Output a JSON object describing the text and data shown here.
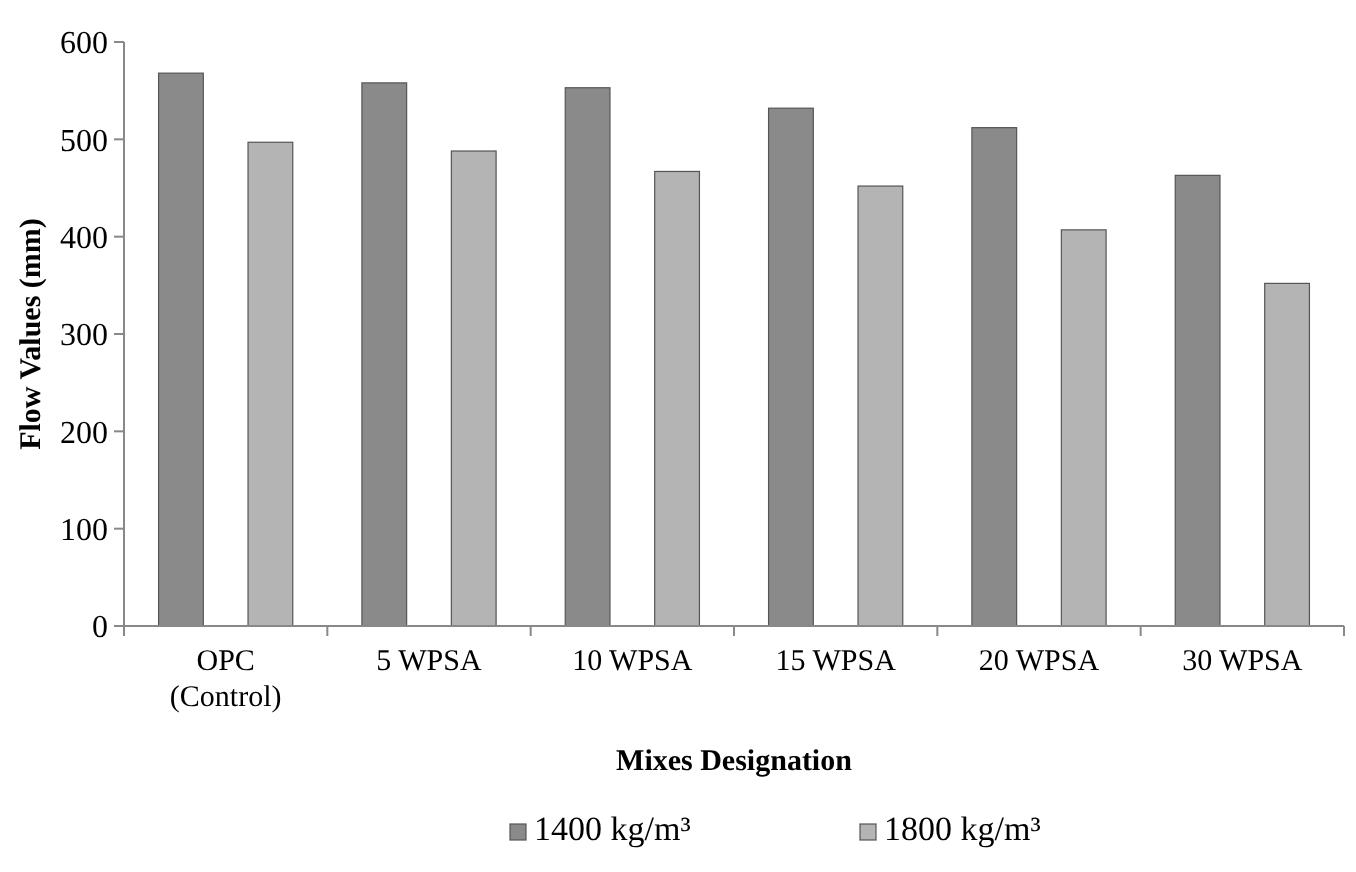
{
  "chart_data": {
    "type": "bar",
    "xlabel": "Mixes Designation",
    "ylabel": "Flow Values (mm)",
    "categories": [
      "OPC\n(Control)",
      "5 WPSA",
      "10 WPSA",
      "15 WPSA",
      "20 WPSA",
      "30 WPSA"
    ],
    "series": [
      {
        "name": "1400 kg/m³",
        "color": "#8a8a8a",
        "values": [
          568,
          558,
          553,
          532,
          512,
          463
        ]
      },
      {
        "name": "1800 kg/m³",
        "color": "#b4b4b4",
        "values": [
          497,
          488,
          467,
          452,
          407,
          352
        ]
      }
    ],
    "ylim": [
      0,
      600
    ],
    "yticks": [
      0,
      100,
      200,
      300,
      400,
      500,
      600
    ],
    "grid": false,
    "legend": "bottom"
  }
}
